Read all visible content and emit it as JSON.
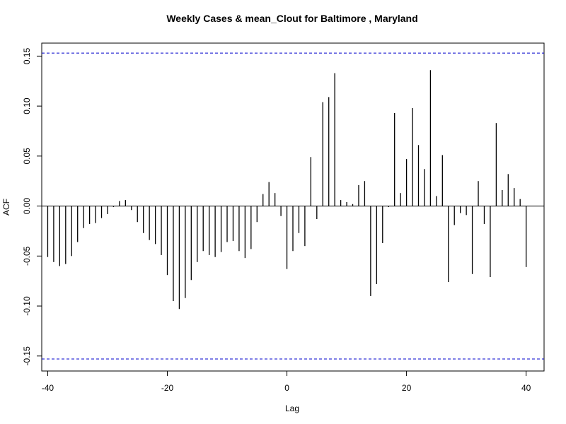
{
  "chart_data": {
    "type": "bar",
    "title": "Weekly Cases & mean_Clout for Baltimore , Maryland",
    "xlabel": "Lag",
    "ylabel": "ACF",
    "xlim": [
      -41,
      43
    ],
    "ylim": [
      -0.165,
      0.163
    ],
    "x_ticks": [
      -40,
      -20,
      0,
      20,
      40
    ],
    "y_ticks": [
      -0.15,
      -0.1,
      -0.05,
      0.0,
      0.05,
      0.1,
      0.15
    ],
    "y_tick_labels": [
      "-0.15",
      "-0.10",
      "-0.05",
      "0.00",
      "0.05",
      "0.10",
      "0.15"
    ],
    "confidence_limit": 0.153,
    "confidence_color": "#0000cc",
    "bar_color": "#000000",
    "lags": [
      -40,
      -39,
      -38,
      -37,
      -36,
      -35,
      -34,
      -33,
      -32,
      -31,
      -30,
      -29,
      -28,
      -27,
      -26,
      -25,
      -24,
      -23,
      -22,
      -21,
      -20,
      -19,
      -18,
      -17,
      -16,
      -15,
      -14,
      -13,
      -12,
      -11,
      -10,
      -9,
      -8,
      -7,
      -6,
      -5,
      -4,
      -3,
      -2,
      -1,
      0,
      1,
      2,
      3,
      4,
      5,
      6,
      7,
      8,
      9,
      10,
      11,
      12,
      13,
      14,
      15,
      16,
      17,
      18,
      19,
      20,
      21,
      22,
      23,
      24,
      25,
      26,
      27,
      28,
      29,
      30,
      31,
      32,
      33,
      34,
      35,
      36,
      37,
      38,
      39,
      40
    ],
    "acf": [
      -0.051,
      -0.056,
      -0.06,
      -0.058,
      -0.05,
      -0.036,
      -0.022,
      -0.018,
      -0.017,
      -0.012,
      -0.008,
      -0.001,
      0.005,
      0.006,
      -0.004,
      -0.016,
      -0.027,
      -0.034,
      -0.038,
      -0.049,
      -0.069,
      -0.095,
      -0.103,
      -0.092,
      -0.074,
      -0.056,
      -0.045,
      -0.049,
      -0.051,
      -0.046,
      -0.036,
      -0.035,
      -0.045,
      -0.052,
      -0.043,
      -0.016,
      0.012,
      0.024,
      0.013,
      -0.01,
      -0.063,
      -0.045,
      -0.027,
      -0.04,
      0.049,
      -0.013,
      0.104,
      0.109,
      0.133,
      0.006,
      0.004,
      0.002,
      0.021,
      0.025,
      -0.09,
      -0.078,
      -0.037,
      -0.001,
      0.093,
      0.013,
      0.047,
      0.098,
      0.061,
      0.037,
      0.136,
      0.01,
      0.051,
      -0.076,
      -0.019,
      -0.007,
      -0.009,
      -0.068,
      0.025,
      -0.018,
      -0.071,
      0.083,
      0.016,
      0.032,
      0.018,
      0.007,
      -0.061
    ]
  }
}
